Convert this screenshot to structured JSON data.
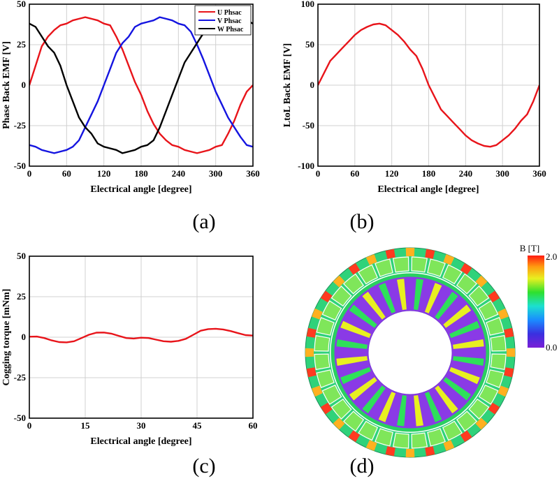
{
  "chart_data": [
    {
      "type": "line",
      "panel": "(a)",
      "xlabel": "Electrical angle [degree]",
      "ylabel": "Phase Back EMF [V]",
      "xlim": [
        0,
        360
      ],
      "ylim": [
        -50,
        50
      ],
      "xticks": [
        0,
        60,
        120,
        180,
        240,
        300,
        360
      ],
      "yticks": [
        -50,
        -25,
        0,
        25,
        50
      ],
      "grid": true,
      "legend": "top-right",
      "x": [
        0,
        10,
        20,
        30,
        40,
        50,
        60,
        70,
        80,
        90,
        100,
        110,
        120,
        130,
        140,
        150,
        160,
        170,
        180,
        190,
        200,
        210,
        220,
        230,
        240,
        250,
        260,
        270,
        280,
        290,
        300,
        310,
        320,
        330,
        340,
        350,
        360
      ],
      "series": [
        {
          "name": "U Phsac",
          "color": "#e8141a",
          "values": [
            0,
            12,
            24,
            30,
            34,
            37,
            38,
            40,
            41,
            42,
            41,
            40,
            38,
            37,
            30,
            22,
            12,
            2,
            -6,
            -16,
            -24,
            -30,
            -34,
            -37,
            -38,
            -40,
            -41,
            -42,
            -41,
            -40,
            -38,
            -37,
            -30,
            -22,
            -12,
            -4,
            0
          ]
        },
        {
          "name": "V Phsac",
          "color": "#1414e0",
          "values": [
            -37,
            -38,
            -40,
            -41,
            -42,
            -41,
            -40,
            -38,
            -34,
            -26,
            -18,
            -10,
            0,
            10,
            20,
            26,
            30,
            36,
            38,
            39,
            40,
            42,
            41,
            40,
            38,
            37,
            33,
            25,
            16,
            6,
            -4,
            -12,
            -20,
            -26,
            -32,
            -37,
            -38
          ]
        },
        {
          "name": "W Phsac",
          "color": "#000000",
          "values": [
            38,
            36,
            30,
            24,
            20,
            12,
            0,
            -10,
            -20,
            -26,
            -30,
            -36,
            -38,
            -39,
            -40,
            -42,
            -41,
            -40,
            -38,
            -37,
            -34,
            -26,
            -16,
            -6,
            4,
            14,
            20,
            26,
            32,
            36,
            38,
            40,
            41,
            42,
            41,
            40,
            38
          ]
        }
      ]
    },
    {
      "type": "line",
      "panel": "(b)",
      "xlabel": "Electrical angle [degree]",
      "ylabel": "LtoL Back EMF [V]",
      "xlim": [
        0,
        360
      ],
      "ylim": [
        -100,
        100
      ],
      "xticks": [
        0,
        60,
        120,
        180,
        240,
        300,
        360
      ],
      "yticks": [
        -100,
        -50,
        0,
        50,
        100
      ],
      "grid": true,
      "x": [
        0,
        10,
        20,
        30,
        40,
        50,
        60,
        70,
        80,
        90,
        100,
        110,
        120,
        130,
        140,
        150,
        160,
        170,
        180,
        190,
        200,
        210,
        220,
        230,
        240,
        250,
        260,
        270,
        280,
        290,
        300,
        310,
        320,
        330,
        340,
        350,
        360
      ],
      "series": [
        {
          "color": "#e8141a",
          "values": [
            0,
            15,
            30,
            38,
            46,
            54,
            62,
            68,
            72,
            75,
            76,
            74,
            68,
            62,
            54,
            44,
            36,
            20,
            0,
            -15,
            -30,
            -38,
            -46,
            -54,
            -62,
            -68,
            -72,
            -75,
            -76,
            -74,
            -68,
            -62,
            -54,
            -44,
            -36,
            -20,
            0
          ]
        }
      ]
    },
    {
      "type": "line",
      "panel": "(c)",
      "xlabel": "Electrical angle [degree]",
      "ylabel": "Cogging torque [mNm]",
      "xlim": [
        0,
        60
      ],
      "ylim": [
        -50,
        50
      ],
      "xticks": [
        0,
        15,
        30,
        45,
        60
      ],
      "yticks": [
        -50,
        -25,
        0,
        25,
        50
      ],
      "grid": true,
      "x": [
        0,
        2,
        4,
        6,
        8,
        10,
        12,
        14,
        16,
        18,
        20,
        22,
        24,
        26,
        28,
        30,
        32,
        34,
        36,
        38,
        40,
        42,
        44,
        46,
        48,
        50,
        52,
        54,
        56,
        58,
        60
      ],
      "series": [
        {
          "color": "#e8141a",
          "values": [
            0.3,
            0.4,
            -0.5,
            -2,
            -3,
            -3.2,
            -2.5,
            -0.5,
            1.5,
            2.8,
            2.9,
            2.2,
            0.8,
            -0.5,
            -0.8,
            -0.3,
            -0.5,
            -1.5,
            -2.5,
            -2.8,
            -2.3,
            -1,
            1.5,
            4,
            5,
            5.2,
            4.8,
            3.8,
            2.5,
            1.3,
            1
          ]
        }
      ]
    }
  ],
  "captions": {
    "a": "(a)",
    "b": "(b)",
    "c": "(c)",
    "d": "(d)"
  },
  "legend_labels": [
    "U Phsac",
    "V Phsac",
    "W Phsac"
  ],
  "colorbar": {
    "title": "B [T]",
    "max_label": "2.0",
    "min_label": "0.0"
  }
}
